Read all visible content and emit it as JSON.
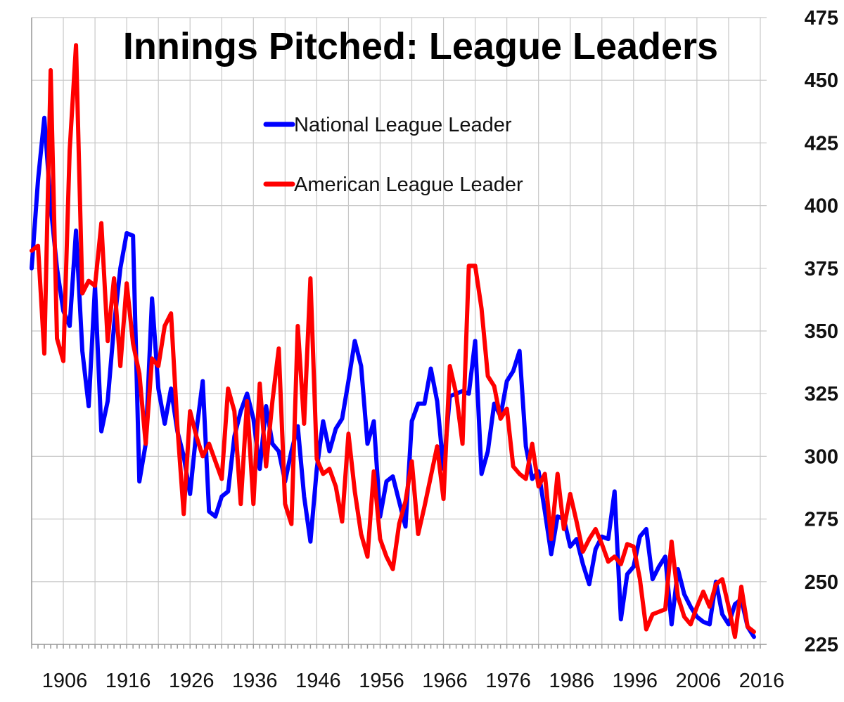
{
  "chart_data": {
    "type": "line",
    "title": "Innings Pitched: League Leaders",
    "xlabel": "",
    "ylabel": "",
    "xlim": [
      1901,
      2017
    ],
    "ylim": [
      225,
      475
    ],
    "x_ticks": [
      1906,
      1916,
      1926,
      1936,
      1946,
      1956,
      1966,
      1976,
      1986,
      1996,
      2006,
      2016
    ],
    "y_ticks": [
      225,
      250,
      275,
      300,
      325,
      350,
      375,
      400,
      425,
      450,
      475
    ],
    "y_axis_side": "right",
    "grid": true,
    "legend_position": "top-center",
    "series": [
      {
        "name": "National League Leader",
        "color": "#0000ff",
        "x": [
          1901,
          1902,
          1903,
          1904,
          1905,
          1906,
          1907,
          1908,
          1909,
          1910,
          1911,
          1912,
          1913,
          1914,
          1915,
          1916,
          1917,
          1918,
          1919,
          1920,
          1921,
          1922,
          1923,
          1924,
          1925,
          1926,
          1927,
          1928,
          1929,
          1930,
          1931,
          1932,
          1933,
          1934,
          1935,
          1936,
          1937,
          1938,
          1939,
          1940,
          1941,
          1942,
          1943,
          1944,
          1945,
          1946,
          1947,
          1948,
          1949,
          1950,
          1951,
          1952,
          1953,
          1954,
          1955,
          1956,
          1957,
          1958,
          1959,
          1960,
          1961,
          1962,
          1963,
          1964,
          1965,
          1966,
          1967,
          1968,
          1969,
          1970,
          1971,
          1972,
          1973,
          1974,
          1975,
          1976,
          1977,
          1978,
          1979,
          1980,
          1981,
          1982,
          1983,
          1984,
          1985,
          1986,
          1987,
          1988,
          1989,
          1990,
          1991,
          1992,
          1993,
          1994,
          1995,
          1996,
          1997,
          1998,
          1999,
          2000,
          2001,
          2002,
          2003,
          2004,
          2005,
          2006,
          2007,
          2008,
          2009,
          2010,
          2011,
          2012,
          2013,
          2014,
          2015,
          2016,
          2017
        ],
        "values": [
          375,
          410,
          435,
          400,
          375,
          358,
          352,
          390,
          342,
          320,
          368,
          310,
          322,
          352,
          375,
          389,
          388,
          290,
          305,
          363,
          327,
          313,
          327,
          310,
          300,
          285,
          310,
          330,
          278,
          276,
          284,
          286,
          308,
          318,
          325,
          315,
          295,
          320,
          305,
          302,
          290,
          302,
          312,
          284,
          266,
          295,
          314,
          302,
          311,
          315,
          330,
          346,
          336,
          305,
          314,
          276,
          290,
          292,
          282,
          272,
          314,
          321,
          321,
          335,
          322,
          295,
          324,
          325,
          326,
          325,
          346,
          293,
          302,
          321,
          316,
          330,
          334,
          342,
          304,
          291,
          294,
          278,
          261,
          276,
          275,
          264,
          267,
          257,
          249,
          263,
          268,
          267,
          286,
          235,
          253,
          256,
          268,
          271,
          251,
          256,
          260,
          233,
          255,
          245,
          240,
          236,
          234,
          233,
          250,
          237,
          233,
          241,
          243,
          232,
          228,
          null,
          null
        ]
      },
      {
        "name": "American League Leader",
        "color": "#ff0000",
        "x": [
          1901,
          1902,
          1903,
          1904,
          1905,
          1906,
          1907,
          1908,
          1909,
          1910,
          1911,
          1912,
          1913,
          1914,
          1915,
          1916,
          1917,
          1918,
          1919,
          1920,
          1921,
          1922,
          1923,
          1924,
          1925,
          1926,
          1927,
          1928,
          1929,
          1930,
          1931,
          1932,
          1933,
          1934,
          1935,
          1936,
          1937,
          1938,
          1939,
          1940,
          1941,
          1942,
          1943,
          1944,
          1945,
          1946,
          1947,
          1948,
          1949,
          1950,
          1951,
          1952,
          1953,
          1954,
          1955,
          1956,
          1957,
          1958,
          1959,
          1960,
          1961,
          1962,
          1963,
          1964,
          1965,
          1966,
          1967,
          1968,
          1969,
          1970,
          1971,
          1972,
          1973,
          1974,
          1975,
          1976,
          1977,
          1978,
          1979,
          1980,
          1981,
          1982,
          1983,
          1984,
          1985,
          1986,
          1987,
          1988,
          1989,
          1990,
          1991,
          1992,
          1993,
          1994,
          1995,
          1996,
          1997,
          1998,
          1999,
          2000,
          2001,
          2002,
          2003,
          2004,
          2005,
          2006,
          2007,
          2008,
          2009,
          2010,
          2011,
          2012,
          2013,
          2014,
          2015,
          2016,
          2017
        ],
        "values": [
          382,
          384,
          341,
          454,
          347,
          338,
          422,
          464,
          365,
          370,
          368,
          393,
          346,
          371,
          336,
          369,
          345,
          333,
          305,
          339,
          336,
          352,
          357,
          312,
          277,
          318,
          308,
          300,
          305,
          298,
          291,
          327,
          318,
          281,
          322,
          281,
          329,
          296,
          322,
          343,
          281,
          273,
          352,
          313,
          371,
          299,
          293,
          295,
          288,
          274,
          309,
          286,
          269,
          260,
          294,
          267,
          260,
          255,
          273,
          282,
          298,
          269,
          280,
          292,
          304,
          283,
          336,
          325,
          305,
          376,
          376,
          359,
          332,
          328,
          315,
          319,
          296,
          293,
          291,
          305,
          288,
          293,
          267,
          293,
          271,
          285,
          274,
          262,
          267,
          271,
          265,
          258,
          260,
          257,
          265,
          264,
          251,
          231,
          237,
          238,
          239,
          266,
          244,
          236,
          233,
          240,
          246,
          240,
          249,
          251,
          240,
          228,
          248,
          232,
          230,
          null,
          null
        ]
      }
    ]
  }
}
